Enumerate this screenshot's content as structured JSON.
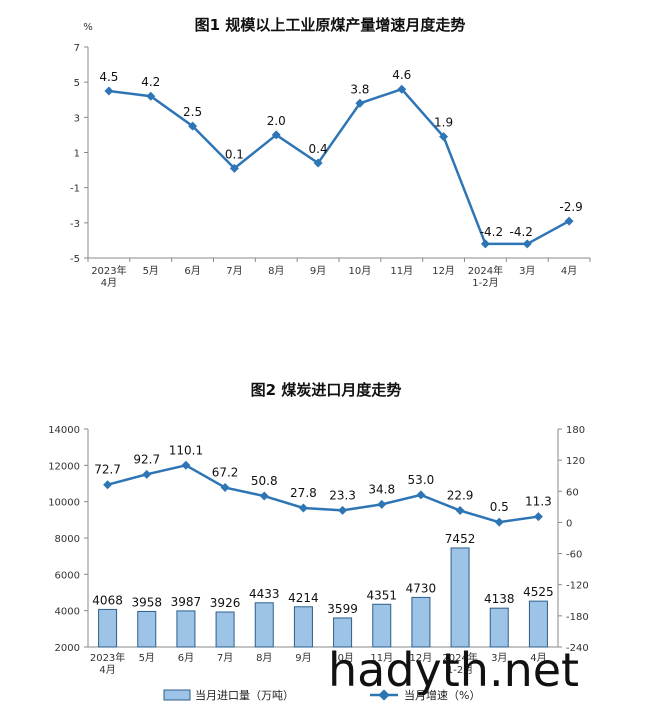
{
  "watermark": "hadyth.net",
  "chart_data": [
    {
      "type": "line",
      "title": "图1  规模以上工业原煤产量增速月度走势",
      "yunit": "%",
      "ylim": [
        -5,
        7
      ],
      "yticks": [
        "7",
        "5",
        "3",
        "1",
        "-1",
        "-3",
        "-5"
      ],
      "ytick_values": [
        7,
        5,
        3,
        1,
        -1,
        -3,
        -5
      ],
      "categories": [
        [
          "2023年",
          "4月"
        ],
        [
          "5月"
        ],
        [
          "6月"
        ],
        [
          "7月"
        ],
        [
          "8月"
        ],
        [
          "9月"
        ],
        [
          "10月"
        ],
        [
          "11月"
        ],
        [
          "12月"
        ],
        [
          "2024年",
          "1-2月"
        ],
        [
          "3月"
        ],
        [
          "4月"
        ]
      ],
      "series": [
        {
          "values": [
            4.5,
            4.2,
            2.5,
            0.1,
            2.0,
            0.4,
            3.8,
            4.6,
            1.9,
            -4.2,
            -4.2,
            -2.9
          ],
          "labels": [
            "4.5",
            "4.2",
            "2.5",
            "0.1",
            "2.0",
            "0.4",
            "3.8",
            "4.6",
            "1.9",
            "-4.2",
            "-4.2",
            "-2.9"
          ],
          "color": "#2e75b6"
        }
      ],
      "grid": false
    },
    {
      "type": "bar+line",
      "title": "图2  煤炭进口月度走势",
      "ylim_left": [
        2000,
        14000
      ],
      "yticks_left": [
        "14000",
        "12000",
        "10000",
        "8000",
        "6000",
        "4000",
        "2000"
      ],
      "ytick_values_left": [
        14000,
        12000,
        10000,
        8000,
        6000,
        4000,
        2000
      ],
      "ylim_right": [
        -240,
        180
      ],
      "yticks_right": [
        "180",
        "120",
        "60",
        "0",
        "-60",
        "-120",
        "-180",
        "-240"
      ],
      "ytick_values_right": [
        180,
        120,
        60,
        0,
        -60,
        -120,
        -180,
        -240
      ],
      "categories": [
        [
          "2023年",
          "4月"
        ],
        [
          "5月"
        ],
        [
          "6月"
        ],
        [
          "7月"
        ],
        [
          "8月"
        ],
        [
          "9月"
        ],
        [
          "10月"
        ],
        [
          "11月"
        ],
        [
          "12月"
        ],
        [
          "2024年",
          "1-2月"
        ],
        [
          "3月"
        ],
        [
          "4月"
        ]
      ],
      "series": [
        {
          "name": "当月进口量（万吨）",
          "type": "bar",
          "axis": "left",
          "values": [
            4068,
            3958,
            3987,
            3926,
            4433,
            4214,
            3599,
            4351,
            4730,
            7452,
            4138,
            4525
          ],
          "labels": [
            "4068",
            "3958",
            "3987",
            "3926",
            "4433",
            "4214",
            "3599",
            "4351",
            "4730",
            "7452",
            "4138",
            "4525"
          ],
          "color": "#9dc3e6",
          "border": "#2e5f8a"
        },
        {
          "name": "当月增速（%）",
          "type": "line",
          "axis": "right",
          "values": [
            72.7,
            92.7,
            110.1,
            67.2,
            50.8,
            27.8,
            23.3,
            34.8,
            53.0,
            22.9,
            0.5,
            11.3
          ],
          "labels": [
            "72.7",
            "92.7",
            "110.1",
            "67.2",
            "50.8",
            "27.8",
            "23.3",
            "34.8",
            "53.0",
            "22.9",
            "0.5",
            "11.3"
          ],
          "color": "#2e75b6"
        }
      ],
      "legend": "bottom",
      "grid": false
    }
  ]
}
